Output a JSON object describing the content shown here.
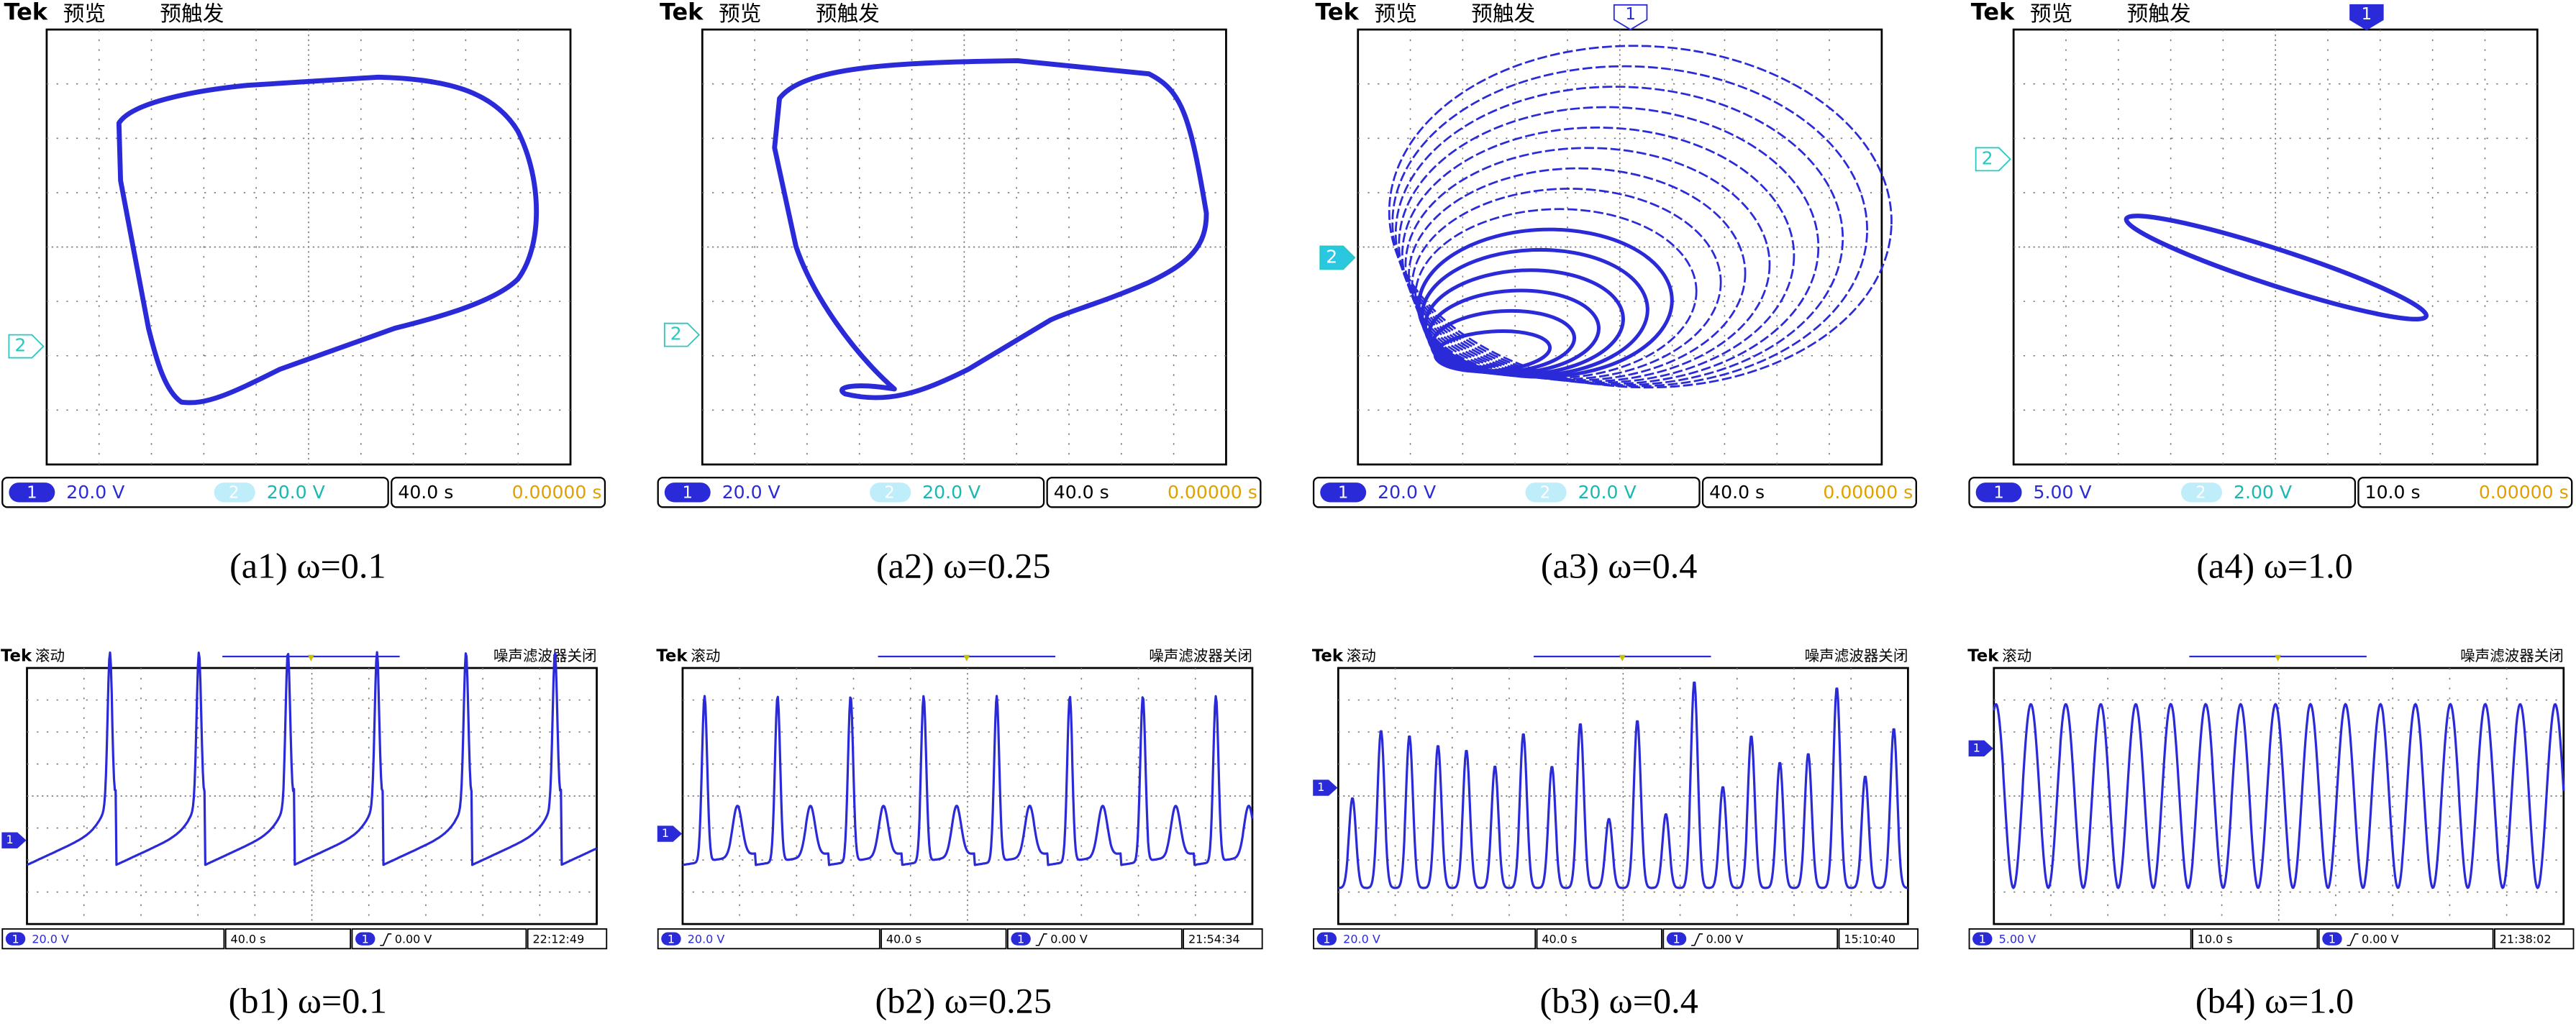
{
  "top": [
    {
      "brand": "Tek",
      "mode": "预览",
      "trigger": "预触发",
      "left_marker": "2",
      "top_marker": null,
      "ch1": "1",
      "ch1_scale": "20.0 V",
      "ch2": "2",
      "ch2_scale": "20.0 V",
      "timebase": "40.0 s",
      "position": "0.00000 s",
      "caption": "(a1) ω=0.1"
    },
    {
      "brand": "Tek",
      "mode": "预览",
      "trigger": "预触发",
      "left_marker": "2",
      "top_marker": null,
      "ch1": "1",
      "ch1_scale": "20.0 V",
      "ch2": "2",
      "ch2_scale": "20.0 V",
      "timebase": "40.0 s",
      "position": "0.00000 s",
      "caption": "(a2) ω=0.25"
    },
    {
      "brand": "Tek",
      "mode": "预览",
      "trigger": "预触发",
      "left_marker": "2",
      "top_marker": "1",
      "ch1": "1",
      "ch1_scale": "20.0 V",
      "ch2": "2",
      "ch2_scale": "20.0 V",
      "timebase": "40.0 s",
      "position": "0.00000 s",
      "caption": "(a3) ω=0.4"
    },
    {
      "brand": "Tek",
      "mode": "预览",
      "trigger": "预触发",
      "left_marker": "2",
      "top_marker": "1",
      "ch1": "1",
      "ch1_scale": "5.00 V",
      "ch2": "2",
      "ch2_scale": "2.00 V",
      "timebase": "10.0 s",
      "position": "0.00000 s",
      "caption": "(a4) ω=1.0"
    }
  ],
  "bottom": [
    {
      "brand": "Tek",
      "mode": "滚动",
      "status": "噪声滤波器关闭",
      "left_marker": "1",
      "ch1": "1",
      "ch1_scale": "20.0 V",
      "timebase": "40.0 s",
      "trigger_ch": "1",
      "trigger_level": "0.00 V",
      "clock": "22:12:49",
      "caption": "(b1) ω=0.1"
    },
    {
      "brand": "Tek",
      "mode": "滚动",
      "status": "噪声滤波器关闭",
      "left_marker": "1",
      "ch1": "1",
      "ch1_scale": "20.0 V",
      "timebase": "40.0 s",
      "trigger_ch": "1",
      "trigger_level": "0.00 V",
      "clock": "21:54:34",
      "caption": "(b2) ω=0.25"
    },
    {
      "brand": "Tek",
      "mode": "滚动",
      "status": "噪声滤波器关闭",
      "left_marker": "1",
      "ch1": "1",
      "ch1_scale": "20.0 V",
      "timebase": "40.0 s",
      "trigger_ch": "1",
      "trigger_level": "0.00 V",
      "clock": "15:10:40",
      "caption": "(b3) ω=0.4"
    },
    {
      "brand": "Tek",
      "mode": "滚动",
      "status": "噪声滤波器关闭",
      "left_marker": "1",
      "ch1": "1",
      "ch1_scale": "5.00 V",
      "timebase": "10.0 s",
      "trigger_ch": "1",
      "trigger_level": "0.00 V",
      "clock": "21:38:02",
      "caption": "(b4) ω=1.0"
    }
  ]
}
